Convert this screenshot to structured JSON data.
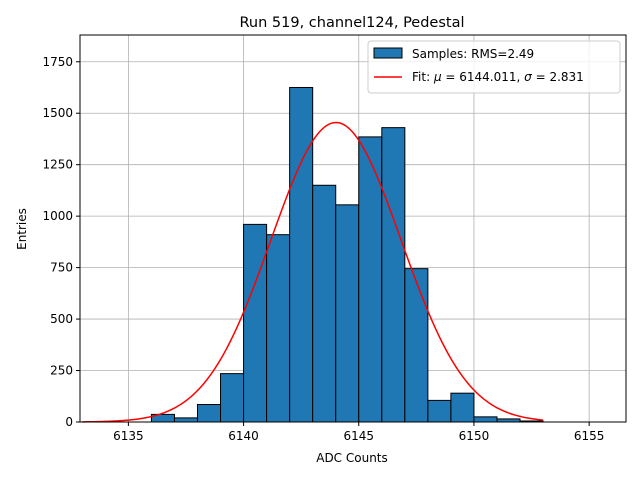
{
  "chart_data": {
    "type": "bar",
    "title": "Run 519, channel124, Pedestal",
    "xlabel": "ADC Counts",
    "ylabel": "Entries",
    "xlim": [
      6132.9,
      6156.6
    ],
    "ylim": [
      0,
      1880
    ],
    "xticks": [
      6135,
      6140,
      6145,
      6150,
      6155
    ],
    "yticks": [
      0,
      250,
      500,
      750,
      1000,
      1250,
      1500,
      1750
    ],
    "grid": true,
    "bin_width": 1,
    "bin_edges": [
      6136,
      6137,
      6138,
      6139,
      6140,
      6141,
      6142,
      6143,
      6144,
      6145,
      6146,
      6147,
      6148,
      6149,
      6150,
      6151,
      6152,
      6153
    ],
    "counts": [
      37,
      20,
      85,
      235,
      960,
      910,
      1625,
      1150,
      1055,
      1385,
      1430,
      745,
      105,
      140,
      25,
      15,
      5
    ],
    "bar_color": "#1f77b4",
    "fit": {
      "mu": 6144.011,
      "sigma": 2.831,
      "amplitude": 1455,
      "range": [
        6133,
        6153
      ],
      "color": "#ff0000"
    },
    "legend": {
      "position": "top-right",
      "entries": [
        {
          "prefix": "Samples: RMS=2.49"
        },
        {
          "prefix": "Fit: ",
          "mu_symbol": "μ",
          "mu_text": " = 6144.011, ",
          "sigma_symbol": "σ",
          "sigma_text": " = 2.831"
        }
      ]
    }
  }
}
